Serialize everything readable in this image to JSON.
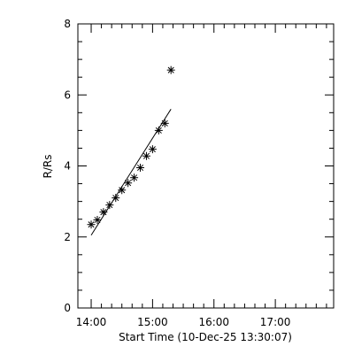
{
  "chart_data": {
    "type": "scatter",
    "xlabel": "Start Time (10-Dec-25 13:30:07)",
    "ylabel": "R/Rs",
    "xlim": [
      827,
      1077
    ],
    "ylim": [
      0,
      8
    ],
    "x_ticks": [
      {
        "value": 840,
        "label": "14:00"
      },
      {
        "value": 900,
        "label": "15:00"
      },
      {
        "value": 960,
        "label": "16:00"
      },
      {
        "value": 1020,
        "label": "17:00"
      }
    ],
    "x_minor_ticks": [
      850,
      860,
      870,
      880,
      890,
      910,
      920,
      930,
      940,
      950,
      970,
      980,
      990,
      1000,
      1010,
      1030,
      1040,
      1050,
      1060,
      1070
    ],
    "y_ticks": [
      0,
      2,
      4,
      6,
      8
    ],
    "y_minor_ticks": [
      0.5,
      1,
      1.5,
      2.5,
      3,
      3.5,
      4.5,
      5,
      5.5,
      6.5,
      7,
      7.5
    ],
    "points": [
      {
        "x": 840,
        "y": 2.35
      },
      {
        "x": 846,
        "y": 2.48
      },
      {
        "x": 852,
        "y": 2.7
      },
      {
        "x": 858,
        "y": 2.9
      },
      {
        "x": 864,
        "y": 3.1
      },
      {
        "x": 870,
        "y": 3.32
      },
      {
        "x": 876,
        "y": 3.52
      },
      {
        "x": 882,
        "y": 3.67
      },
      {
        "x": 888,
        "y": 3.95
      },
      {
        "x": 894,
        "y": 4.28
      },
      {
        "x": 900,
        "y": 4.47
      },
      {
        "x": 906,
        "y": 5.0
      },
      {
        "x": 912,
        "y": 5.2
      },
      {
        "x": 918,
        "y": 6.7
      }
    ],
    "fit_line": {
      "x": [
        840,
        918
      ],
      "y": [
        2.05,
        5.6
      ]
    },
    "marker": "asterisk",
    "grid": false
  }
}
